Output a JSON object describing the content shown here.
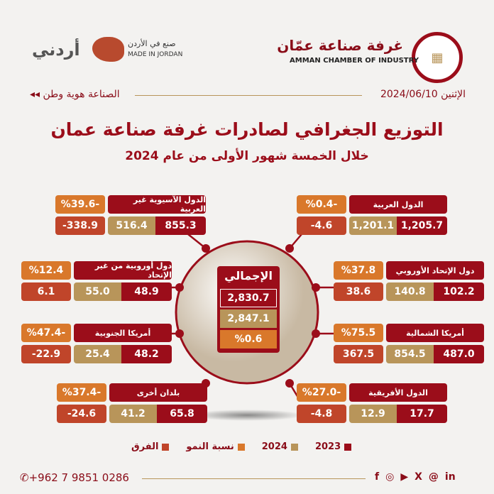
{
  "header": {
    "chamber_ar": "غرفة صناعة عمّان",
    "chamber_en": "AMMAN CHAMBER OF INDUSTRY",
    "made_ar": "صنع في الأردن",
    "made_en": "MADE IN JORDAN",
    "urduni": "أردني",
    "date": "الإثنين 2024/06/10",
    "slogan": "الصناعة هوية وطن"
  },
  "title": "التوزيع الجغرافي لصادرات غرفة صناعة عمان",
  "subtitle": "خلال الخمسة شهور الأولى من عام 2024",
  "colors": {
    "y2023": "#9b0d1a",
    "y2024": "#b8955a",
    "growth": "#d9782b",
    "diff": "#c0452a"
  },
  "total": {
    "label": "الإجمالي",
    "v2023": "2,830.7",
    "v2024": "2,847.1",
    "growth": "%0.6"
  },
  "regions": [
    {
      "name": "الدول الآسيوية غير العربية",
      "growth": "%39.6-",
      "diff": "-338.9",
      "v2024": "516.4",
      "v2023": "855.3"
    },
    {
      "name": "الدول العربية",
      "growth": "%0.4-",
      "diff": "-4.6",
      "v2024": "1,201.1",
      "v2023": "1,205.7"
    },
    {
      "name": "دول أوروبية من غير الإتحاد",
      "growth": "%12.4",
      "diff": "6.1",
      "v2024": "55.0",
      "v2023": "48.9"
    },
    {
      "name": "دول الإتحاد الأوروبي",
      "growth": "%37.8",
      "diff": "38.6",
      "v2024": "140.8",
      "v2023": "102.2"
    },
    {
      "name": "أمريكا الجنوبية",
      "growth": "%47.4-",
      "diff": "-22.9",
      "v2024": "25.4",
      "v2023": "48.2"
    },
    {
      "name": "أمريكا الشمالية",
      "growth": "%75.5",
      "diff": "367.5",
      "v2024": "854.5",
      "v2023": "487.0"
    },
    {
      "name": "بلدان أخرى",
      "growth": "%37.4-",
      "diff": "-24.6",
      "v2024": "41.2",
      "v2023": "65.8"
    },
    {
      "name": "الدول الأفريقية",
      "growth": "%27.0-",
      "diff": "-4.8",
      "v2024": "12.9",
      "v2023": "17.7"
    }
  ],
  "legend": {
    "y2023": "2023",
    "y2024": "2024",
    "growth": "نسبة النمو",
    "diff": "الفرق"
  },
  "footer": {
    "phone": "+962 7 9851 0286",
    "social": [
      "facebook-icon",
      "instagram-icon",
      "youtube-icon",
      "x-icon",
      "threads-icon",
      "linkedin-icon"
    ]
  }
}
